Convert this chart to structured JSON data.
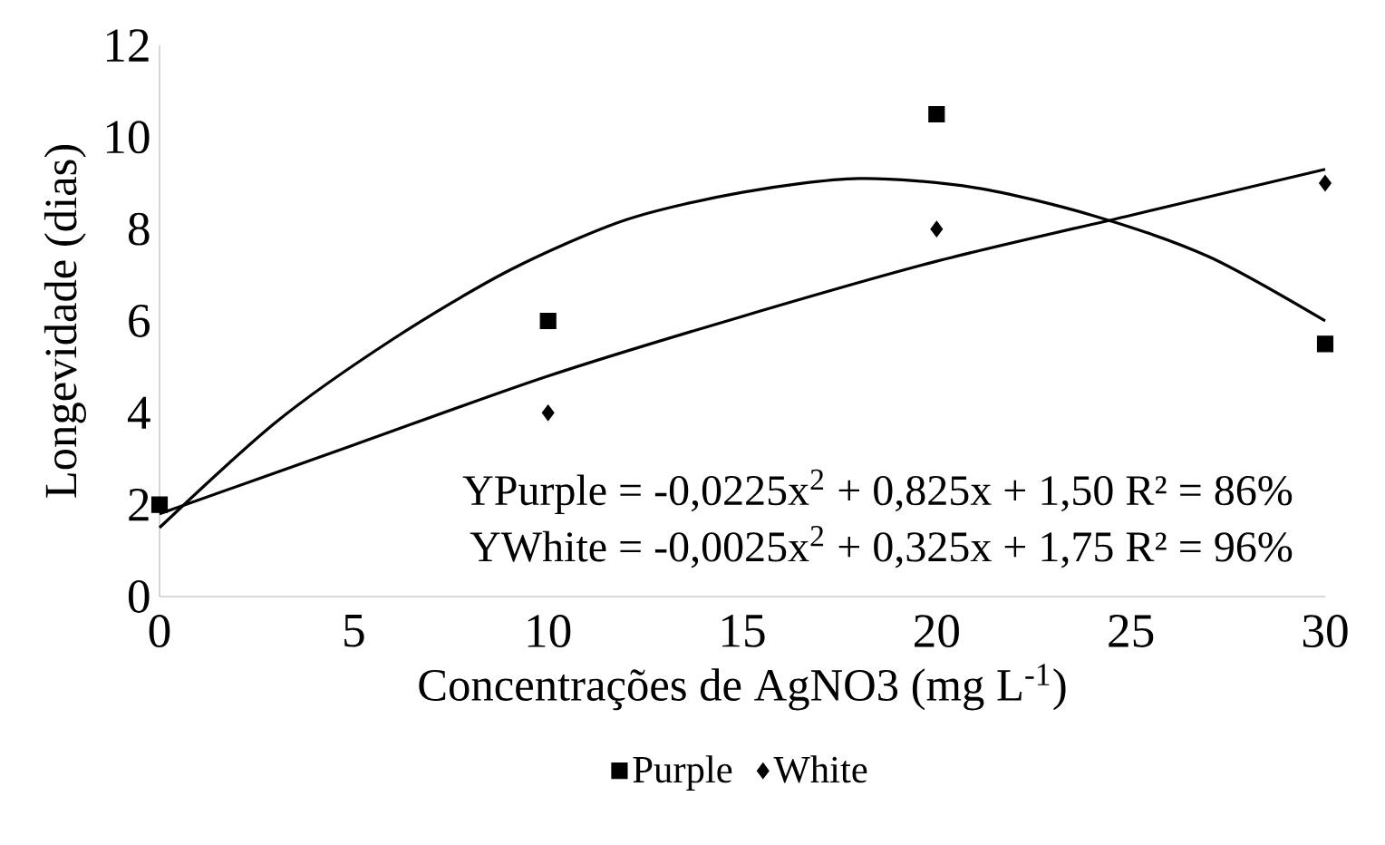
{
  "chart_data": {
    "type": "scatter",
    "xlabel": "Concentrações de AgNO3 (mg L$^{-1}$)",
    "ylabel": "Longevidade (dias)",
    "x": [
      0,
      10,
      20,
      30
    ],
    "series": [
      {
        "name": "Purple",
        "color": "#000000",
        "marker": "square",
        "values": [
          2,
          6,
          10.5,
          5.5
        ]
      },
      {
        "name": "White",
        "color": "#000000",
        "marker": "diamond",
        "values": [
          null,
          4,
          8,
          9
        ]
      },
      {
        "type": "line",
        "color": "#000000",
        "line_style": "solid",
        "x": [
          0,
          3,
          6,
          9,
          12,
          15,
          18,
          21,
          24,
          27,
          30
        ],
        "values": [
          1.5,
          3.8,
          5.6,
          7.1,
          8.2,
          8.8,
          9.1,
          8.9,
          8.3,
          7.4,
          6.0
        ]
      },
      {
        "type": "line",
        "color": "#000000",
        "line_style": "solid",
        "x": [
          0,
          5,
          10,
          15,
          20,
          25,
          30
        ],
        "values": [
          1.8,
          3.3,
          4.8,
          6.1,
          7.3,
          8.3,
          9.3
        ]
      }
    ],
    "annotations": [
      "YPurple = -0,0225x$^{2}$ + 0,825x + 1,50  R² = 86%",
      "YWhite = -0,0025x$^{2}$ + 0,325x + 1,75  R² = 96%"
    ],
    "xlim": [
      0,
      30
    ],
    "xticks": [
      0,
      5,
      10,
      15,
      20,
      25,
      30
    ],
    "ylim": [
      0,
      12
    ],
    "yticks": [
      0,
      2,
      4,
      6,
      8,
      10,
      12
    ],
    "grid": false,
    "legend": "bottom"
  }
}
